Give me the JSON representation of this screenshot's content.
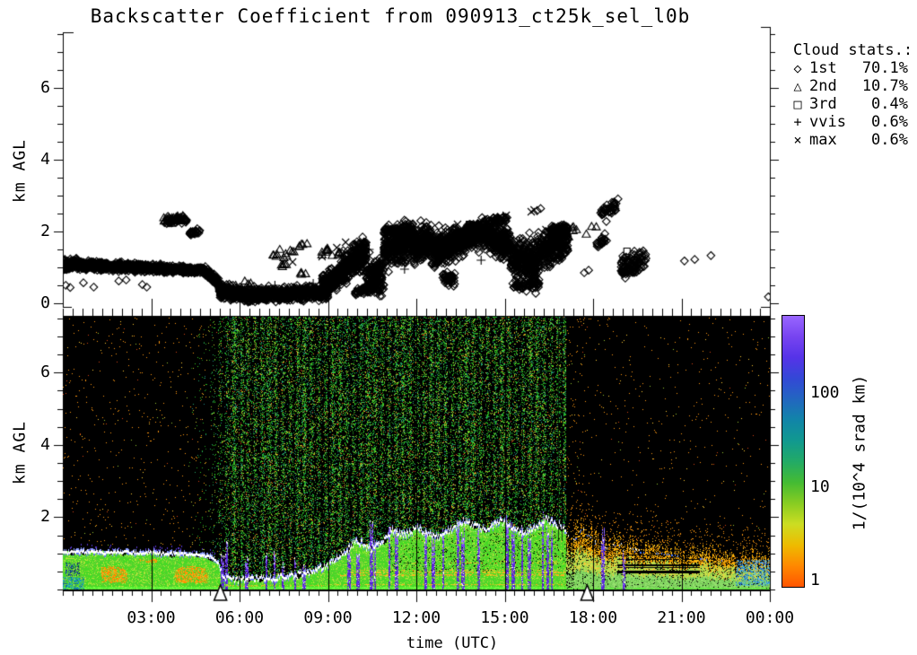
{
  "title": "Backscatter Coefficient from 090913_ct25k_sel_l0b",
  "colors": {
    "ink": "#000000",
    "background": "#ffffff",
    "heatmap_background": "#000000",
    "cloud_line": "#ffffff",
    "precip_purple": "#6633ee",
    "band_green": "#44dd22",
    "band_orange": "#ffaa00"
  },
  "chart_data": [
    {
      "type": "scatter",
      "panel": "cloud-base-heights",
      "ylabel": "km AGL",
      "xlim_hours": [
        0,
        24
      ],
      "ylim_km": [
        0,
        7.55
      ],
      "yticks": [
        0,
        2,
        4,
        6
      ],
      "marker_color": "#000000",
      "legend": {
        "title": "Cloud stats.:",
        "entries": [
          {
            "symbol": "diamond",
            "label": "1st",
            "value": "70.1%"
          },
          {
            "symbol": "triangle",
            "label": "2nd",
            "value": "10.7%"
          },
          {
            "symbol": "square",
            "label": "3rd",
            "value": "0.4%"
          },
          {
            "symbol": "plus",
            "label": "vvis",
            "value": "0.6%"
          },
          {
            "symbol": "cross",
            "label": "max",
            "value": "0.6%"
          }
        ]
      },
      "series": [
        {
          "name": "1st cloud base",
          "marker": "diamond",
          "clusters": [
            [
              0.0,
              0.5,
              1.05,
              1.1,
              0.1,
              150
            ],
            [
              0.5,
              1.0,
              1.08,
              1.05,
              0.09,
              140
            ],
            [
              1.0,
              2.5,
              1.05,
              1.0,
              0.08,
              330
            ],
            [
              2.5,
              4.8,
              1.0,
              0.92,
              0.07,
              480
            ],
            [
              4.8,
              5.3,
              0.9,
              0.6,
              0.1,
              90
            ],
            [
              5.3,
              6.3,
              0.35,
              0.22,
              0.12,
              340
            ],
            [
              6.3,
              9.0,
              0.22,
              0.3,
              0.13,
              700
            ],
            [
              8.8,
              9.6,
              0.45,
              0.9,
              0.2,
              220
            ],
            [
              9.5,
              10.3,
              0.95,
              1.45,
              0.3,
              260
            ],
            [
              10.3,
              10.9,
              0.7,
              0.8,
              0.35,
              180
            ],
            [
              10.9,
              11.9,
              1.5,
              1.75,
              0.33,
              330
            ],
            [
              10.9,
              11.9,
              2.0,
              2.05,
              0.1,
              70
            ],
            [
              11.9,
              12.5,
              1.55,
              1.75,
              0.33,
              250
            ],
            [
              12.5,
              13.2,
              1.5,
              1.55,
              0.33,
              260
            ],
            [
              13.2,
              14.3,
              1.65,
              1.95,
              0.28,
              330
            ],
            [
              13.7,
              14.1,
              2.05,
              2.1,
              0.09,
              70
            ],
            [
              14.3,
              15.2,
              1.9,
              1.65,
              0.3,
              300
            ],
            [
              14.4,
              15.1,
              2.3,
              2.35,
              0.07,
              40
            ],
            [
              15.2,
              16.1,
              1.25,
              1.1,
              0.42,
              300
            ],
            [
              15.3,
              16.2,
              0.5,
              0.55,
              0.1,
              60
            ],
            [
              16.1,
              17.15,
              1.4,
              1.8,
              0.32,
              300
            ],
            [
              16.55,
              17.1,
              2.0,
              2.1,
              0.1,
              80
            ],
            [
              9.9,
              10.6,
              0.3,
              0.45,
              0.1,
              45
            ],
            [
              12.9,
              13.3,
              0.7,
              0.65,
              0.13,
              50
            ],
            [
              3.45,
              4.2,
              2.3,
              2.33,
              0.07,
              40
            ],
            [
              4.3,
              4.65,
              1.95,
              2.0,
              0.05,
              32
            ],
            [
              18.25,
              18.85,
              2.55,
              2.75,
              0.13,
              40
            ],
            [
              18.1,
              18.6,
              1.6,
              1.9,
              0.12,
              22
            ],
            [
              18.95,
              19.8,
              1.0,
              1.3,
              0.2,
              90
            ],
            [
              19.0,
              19.5,
              0.85,
              0.9,
              0.07,
              22
            ]
          ],
          "points": [
            [
              0.1,
              0.5
            ],
            [
              0.25,
              0.44
            ],
            [
              0.7,
              0.57
            ],
            [
              1.05,
              0.45
            ],
            [
              1.9,
              0.62
            ],
            [
              2.15,
              0.65
            ],
            [
              2.7,
              0.52
            ],
            [
              2.85,
              0.45
            ],
            [
              5.05,
              0.72
            ],
            [
              10.2,
              0.35
            ],
            [
              10.45,
              0.3
            ],
            [
              17.7,
              0.85
            ],
            [
              17.85,
              0.92
            ],
            [
              18.45,
              2.28
            ],
            [
              21.1,
              1.18
            ],
            [
              21.45,
              1.22
            ],
            [
              22.0,
              1.33
            ],
            [
              23.95,
              0.18
            ],
            [
              16.1,
              2.58
            ],
            [
              16.22,
              2.64
            ],
            [
              12.15,
              2.3
            ]
          ]
        },
        {
          "name": "2nd cloud base",
          "marker": "triangle",
          "clusters": [
            [
              3.4,
              4.15,
              2.32,
              2.4,
              0.06,
              22
            ],
            [
              5.8,
              6.4,
              0.5,
              0.6,
              0.1,
              6
            ],
            [
              7.0,
              8.3,
              1.35,
              1.6,
              0.12,
              16
            ],
            [
              7.3,
              7.6,
              1.05,
              1.1,
              0.05,
              5
            ],
            [
              8.05,
              8.25,
              0.82,
              0.85,
              0.04,
              4
            ],
            [
              8.5,
              9.0,
              1.35,
              1.5,
              0.1,
              8
            ],
            [
              9.1,
              9.5,
              1.3,
              1.45,
              0.08,
              6
            ],
            [
              11.4,
              12.3,
              1.75,
              2.0,
              0.12,
              12
            ],
            [
              13.9,
              14.8,
              2.15,
              2.35,
              0.1,
              9
            ],
            [
              16.4,
              16.8,
              1.5,
              1.55,
              0.06,
              5
            ],
            [
              17.1,
              18.3,
              1.9,
              2.2,
              0.12,
              8
            ]
          ],
          "points": []
        },
        {
          "name": "3rd cloud base",
          "marker": "square",
          "clusters": [],
          "points": [
            [
              13.8,
              2.2
            ],
            [
              19.15,
              1.45
            ],
            [
              12.35,
              1.9
            ],
            [
              16.55,
              1.15
            ],
            [
              14.5,
              2.05
            ]
          ]
        },
        {
          "name": "vertical visibility",
          "marker": "plus",
          "clusters": [],
          "points": [
            [
              7.2,
              0.5
            ],
            [
              8.5,
              0.55
            ],
            [
              9.8,
              1.2
            ],
            [
              10.4,
              1.5
            ],
            [
              11.6,
              0.95
            ],
            [
              12.6,
              1.45
            ],
            [
              13.9,
              1.8
            ],
            [
              14.2,
              1.2
            ],
            [
              15.4,
              1.35
            ],
            [
              16.1,
              0.95
            ]
          ]
        },
        {
          "name": "max signal height",
          "marker": "cross",
          "clusters": [],
          "points": [
            [
              7.8,
              1.15
            ],
            [
              8.8,
              1.3
            ],
            [
              9.3,
              1.55
            ],
            [
              9.6,
              1.7
            ],
            [
              10.1,
              1.4
            ],
            [
              10.9,
              1.85
            ],
            [
              11.2,
              1.6
            ],
            [
              12.1,
              2.05
            ],
            [
              12.8,
              1.75
            ],
            [
              13.4,
              2.2
            ],
            [
              14.6,
              2.3
            ],
            [
              15.05,
              2.45
            ],
            [
              15.9,
              2.55
            ],
            [
              16.0,
              2.6
            ],
            [
              16.4,
              2.05
            ]
          ]
        }
      ]
    },
    {
      "type": "heatmap",
      "panel": "backscatter-coefficient",
      "xlabel": "time (UTC)",
      "ylabel": "km AGL",
      "xticks_hours": [
        3,
        6,
        9,
        12,
        15,
        18,
        21,
        24
      ],
      "xtick_labels": [
        "03:00",
        "06:00",
        "09:00",
        "12:00",
        "15:00",
        "18:00",
        "21:00",
        "00:00"
      ],
      "yticks": [
        2,
        4,
        6
      ],
      "ylim_km": [
        0,
        7.57
      ],
      "gridline_hours": [
        3,
        6,
        9,
        12,
        15,
        18,
        21
      ],
      "sun_marker_hours": [
        5.35,
        17.8
      ],
      "day_noise_hours": [
        4.2,
        17.06
      ],
      "band_top_km": [
        [
          0,
          1.0
        ],
        [
          0.7,
          1.05
        ],
        [
          1.5,
          1.0
        ],
        [
          2,
          1.05
        ],
        [
          2.5,
          1.0
        ],
        [
          3,
          1.02
        ],
        [
          3.5,
          0.98
        ],
        [
          4,
          1.0
        ],
        [
          4.5,
          0.95
        ],
        [
          5,
          0.9
        ],
        [
          5.25,
          0.75
        ],
        [
          5.45,
          0.3
        ],
        [
          6,
          0.25
        ],
        [
          6.5,
          0.3
        ],
        [
          7,
          0.3
        ],
        [
          7.5,
          0.35
        ],
        [
          8,
          0.4
        ],
        [
          8.5,
          0.5
        ],
        [
          9,
          0.7
        ],
        [
          9.5,
          1.0
        ],
        [
          10,
          1.35
        ],
        [
          10.4,
          1.1
        ],
        [
          10.8,
          1.25
        ],
        [
          11.2,
          1.65
        ],
        [
          11.6,
          1.5
        ],
        [
          12,
          1.7
        ],
        [
          12.4,
          1.5
        ],
        [
          12.8,
          1.45
        ],
        [
          13.2,
          1.65
        ],
        [
          13.6,
          1.9
        ],
        [
          14,
          1.75
        ],
        [
          14.4,
          1.6
        ],
        [
          14.8,
          1.9
        ],
        [
          15.2,
          1.75
        ],
        [
          15.6,
          1.55
        ],
        [
          16,
          1.7
        ],
        [
          16.4,
          1.95
        ],
        [
          16.7,
          1.8
        ],
        [
          17,
          1.7
        ],
        [
          17.3,
          1.4
        ],
        [
          17.6,
          1.8
        ],
        [
          17.9,
          1.5
        ],
        [
          18.2,
          1.3
        ],
        [
          18.5,
          1.2
        ],
        [
          18.8,
          1.4
        ],
        [
          19.1,
          1.25
        ],
        [
          19.5,
          1.15
        ],
        [
          20,
          1.15
        ],
        [
          20.5,
          1.1
        ],
        [
          21,
          1.05
        ],
        [
          21.5,
          1.0
        ],
        [
          22,
          0.95
        ],
        [
          23,
          0.9
        ],
        [
          24,
          0.85
        ]
      ],
      "precip_streaks": [
        [
          5.4,
          1.0
        ],
        [
          5.55,
          1.3
        ],
        [
          6.2,
          0.9
        ],
        [
          6.9,
          1.0
        ],
        [
          7.2,
          1.1
        ],
        [
          7.45,
          0.8
        ],
        [
          7.9,
          0.9
        ],
        [
          8.15,
          0.7
        ],
        [
          9.7,
          1.2
        ],
        [
          10.0,
          1.1
        ],
        [
          10.45,
          1.9
        ],
        [
          10.6,
          1.5
        ],
        [
          11.1,
          2.0
        ],
        [
          11.3,
          1.7
        ],
        [
          12.3,
          1.6
        ],
        [
          12.55,
          1.4
        ],
        [
          12.9,
          1.9
        ],
        [
          13.4,
          2.1
        ],
        [
          13.55,
          1.8
        ],
        [
          14.1,
          1.6
        ],
        [
          15.05,
          2.1
        ],
        [
          15.25,
          1.9
        ],
        [
          15.6,
          1.9
        ],
        [
          15.8,
          1.7
        ],
        [
          16.3,
          2.2
        ],
        [
          16.45,
          2.0
        ],
        [
          16.6,
          1.8
        ],
        [
          18.3,
          1.7
        ],
        [
          19.05,
          1.05
        ]
      ],
      "colorbar": {
        "label": "1/(10^4 srad km)",
        "ticks": [
          "1",
          "10",
          "100"
        ],
        "scale": "log",
        "range": [
          1,
          800
        ],
        "gradient_bottom_to_top": [
          "#ff5500",
          "#ff8800",
          "#eebb00",
          "#ccdd22",
          "#88cc22",
          "#44bb33",
          "#22aa66",
          "#11998f",
          "#1185a8",
          "#2266c0",
          "#3348d6",
          "#5533e8",
          "#7744f0",
          "#9966ff"
        ]
      }
    }
  ]
}
